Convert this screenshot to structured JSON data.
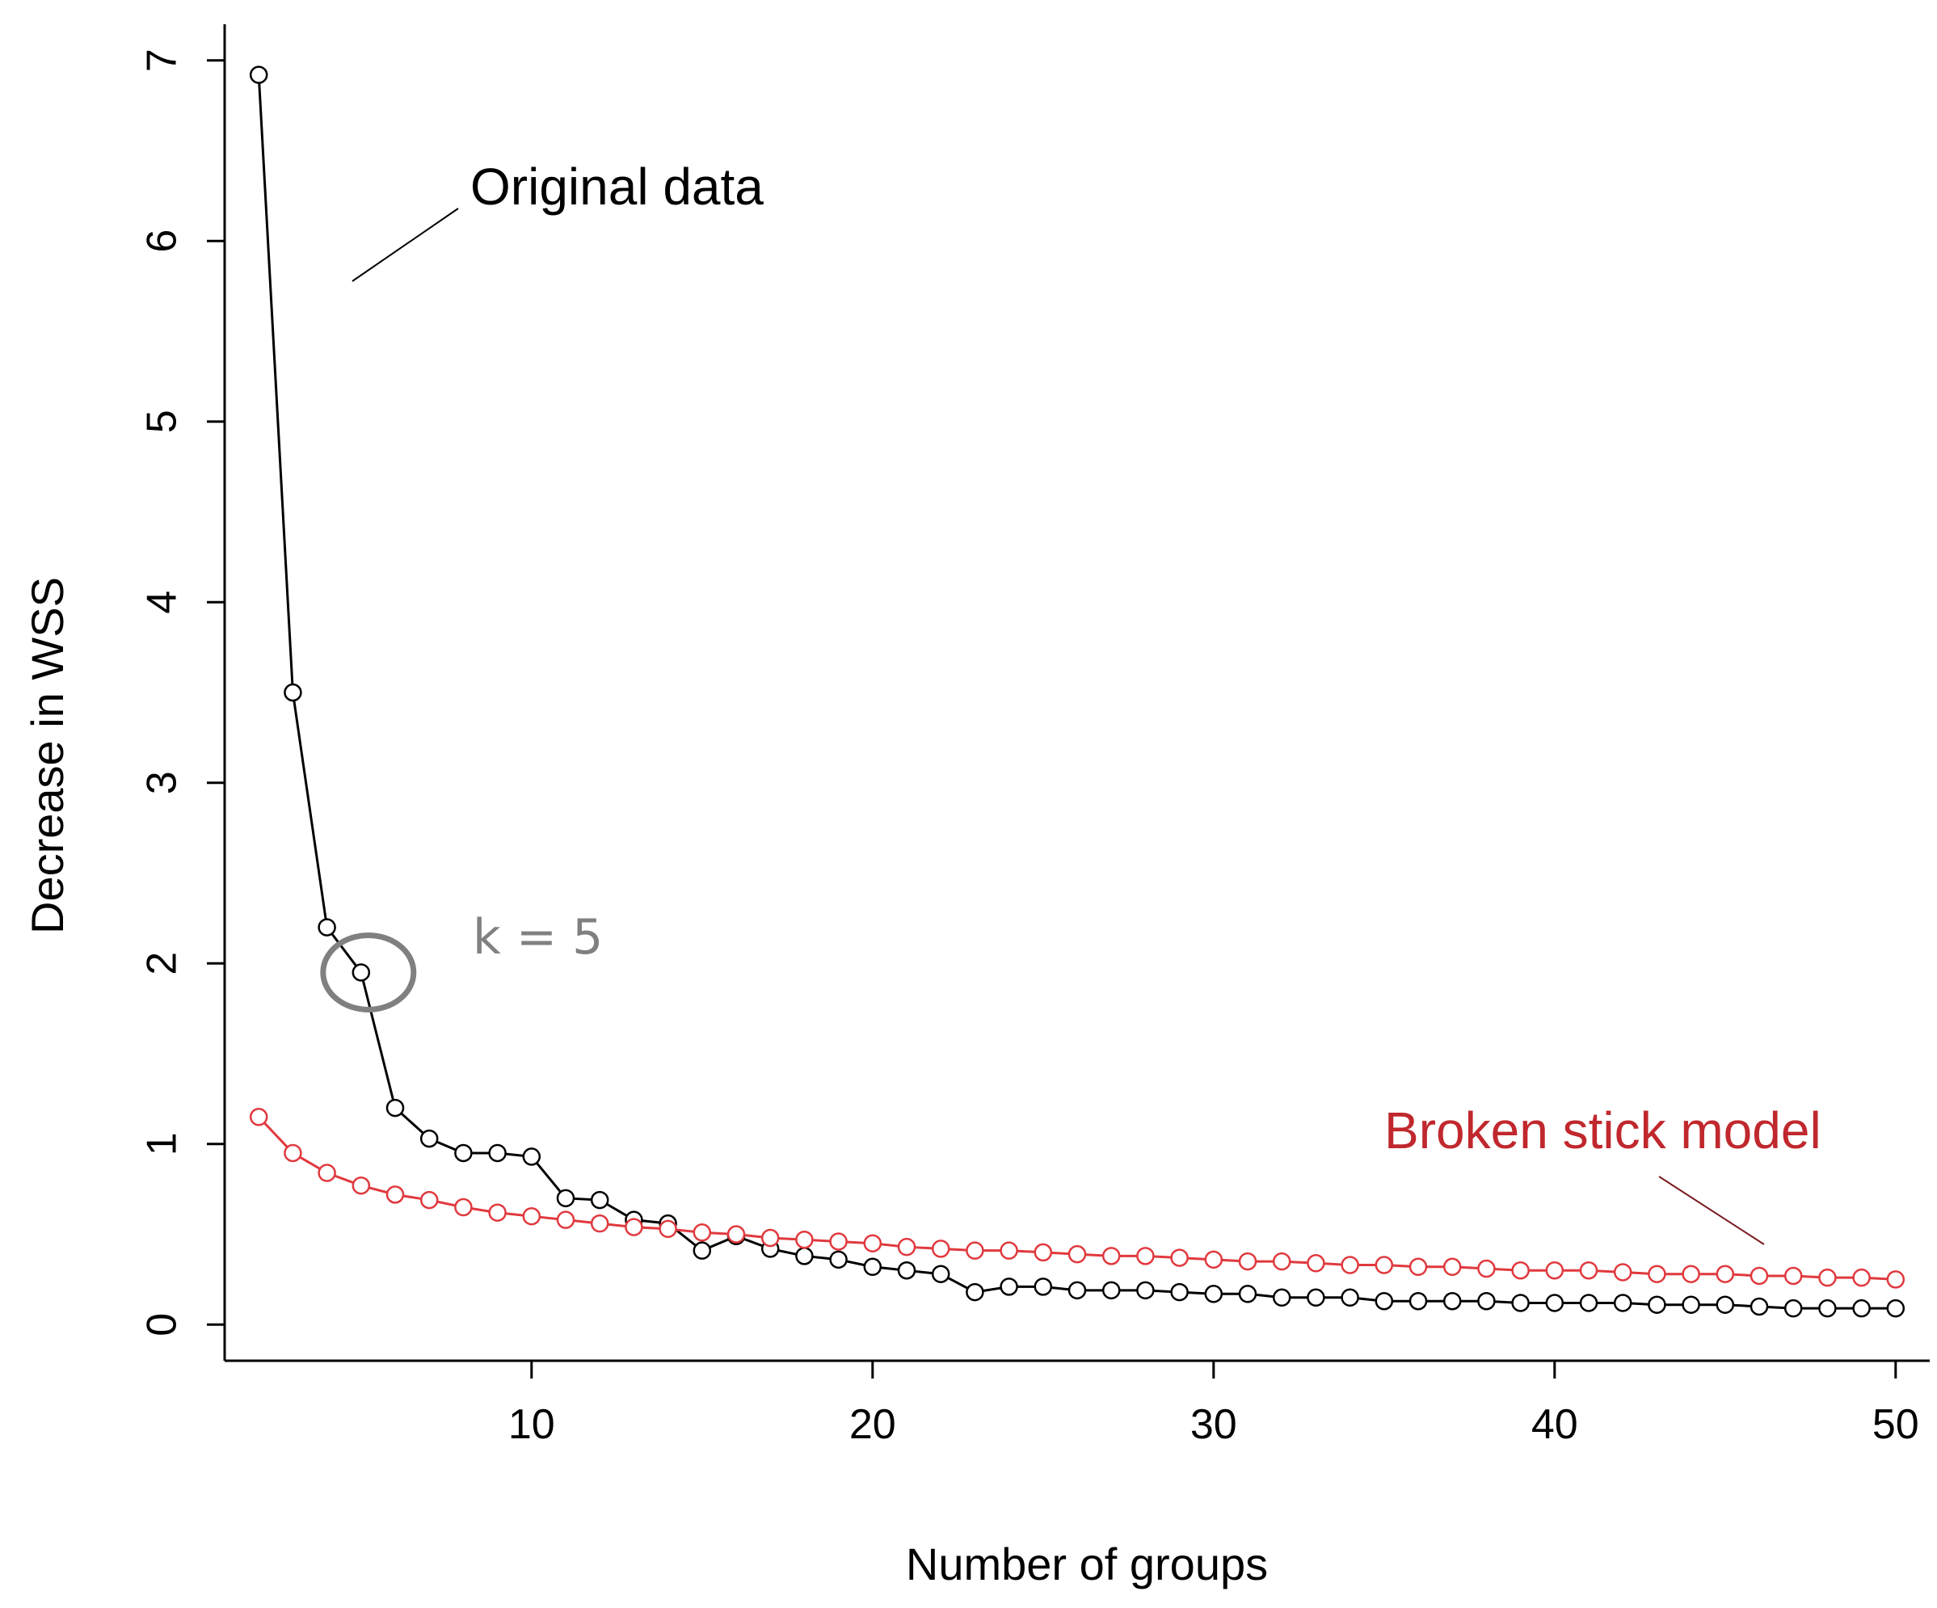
{
  "chart_data": {
    "type": "line",
    "title": "",
    "xlabel": "Number of groups",
    "ylabel": "Decrease in WSS",
    "xlim": [
      1,
      51
    ],
    "ylim": [
      -0.2,
      7.2
    ],
    "xticks": [
      10,
      20,
      30,
      40,
      50
    ],
    "yticks": [
      0,
      1,
      2,
      3,
      4,
      5,
      6,
      7
    ],
    "grid": false,
    "series": [
      {
        "name": "Original data",
        "color": "#000000",
        "x": [
          2,
          3,
          4,
          5,
          6,
          7,
          8,
          9,
          10,
          11,
          12,
          13,
          14,
          15,
          16,
          17,
          18,
          19,
          20,
          21,
          22,
          23,
          24,
          25,
          26,
          27,
          28,
          29,
          30,
          31,
          32,
          33,
          34,
          35,
          36,
          37,
          38,
          39,
          40,
          41,
          42,
          43,
          44,
          45,
          46,
          47,
          48,
          49,
          50
        ],
        "y": [
          6.92,
          3.5,
          2.2,
          1.95,
          1.2,
          1.03,
          0.95,
          0.95,
          0.93,
          0.7,
          0.69,
          0.58,
          0.56,
          0.41,
          0.49,
          0.42,
          0.38,
          0.36,
          0.32,
          0.3,
          0.28,
          0.18,
          0.21,
          0.21,
          0.19,
          0.19,
          0.19,
          0.18,
          0.17,
          0.17,
          0.15,
          0.15,
          0.15,
          0.13,
          0.13,
          0.13,
          0.13,
          0.12,
          0.12,
          0.12,
          0.12,
          0.11,
          0.11,
          0.11,
          0.1,
          0.09,
          0.09,
          0.09,
          0.09
        ]
      },
      {
        "name": "Broken stick model",
        "color": "#e0393e",
        "x": [
          2,
          3,
          4,
          5,
          6,
          7,
          8,
          9,
          10,
          11,
          12,
          13,
          14,
          15,
          16,
          17,
          18,
          19,
          20,
          21,
          22,
          23,
          24,
          25,
          26,
          27,
          28,
          29,
          30,
          31,
          32,
          33,
          34,
          35,
          36,
          37,
          38,
          39,
          40,
          41,
          42,
          43,
          44,
          45,
          46,
          47,
          48,
          49,
          50
        ],
        "y": [
          1.15,
          0.95,
          0.84,
          0.77,
          0.72,
          0.69,
          0.65,
          0.62,
          0.6,
          0.58,
          0.56,
          0.54,
          0.53,
          0.51,
          0.5,
          0.48,
          0.47,
          0.46,
          0.45,
          0.43,
          0.42,
          0.41,
          0.41,
          0.4,
          0.39,
          0.38,
          0.38,
          0.37,
          0.36,
          0.35,
          0.35,
          0.34,
          0.33,
          0.33,
          0.32,
          0.32,
          0.31,
          0.3,
          0.3,
          0.3,
          0.29,
          0.28,
          0.28,
          0.28,
          0.27,
          0.27,
          0.26,
          0.26,
          0.25
        ]
      }
    ],
    "annotations": [
      {
        "text": "Original data",
        "color": "#000000"
      },
      {
        "text": "k = 5",
        "color": "#808080",
        "highlight_x": 5,
        "highlight_y": 1.95
      },
      {
        "text": "Broken stick model",
        "color": "#c0282d"
      }
    ]
  }
}
